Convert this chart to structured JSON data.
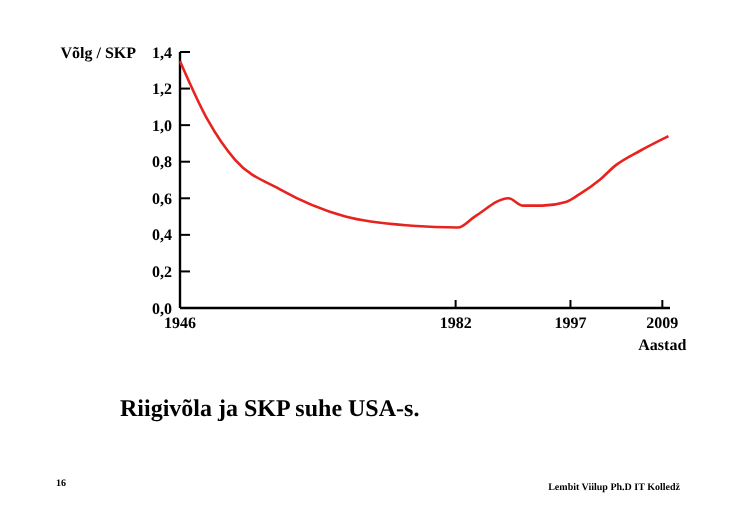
{
  "chart_data": {
    "type": "line",
    "title": "Riigivõla ja SKP suhe USA-s.",
    "ylabel": "Võlg / SKP",
    "xlabel": "Aastad",
    "annotations": [
      "16",
      "Lembit Viilup Ph.D IT Kolledž"
    ],
    "x": [
      1946,
      1949.6,
      1953.2,
      1959,
      1967.6,
      1976.3,
      1982.3,
      1984.5,
      1988.9,
      1990.8,
      1993.3,
      1996.4,
      1998.1,
      2000.8,
      2002.9,
      2006.1,
      2009.8
    ],
    "series": [
      {
        "color": "#e8231f",
        "values": [
          1.35,
          1.03,
          0.81,
          0.65,
          0.5,
          0.45,
          0.44,
          0.5,
          0.6,
          0.56,
          0.56,
          0.58,
          0.62,
          0.7,
          0.78,
          0.86,
          0.94
        ]
      }
    ],
    "xlim": [
      1946,
      2010
    ],
    "xticks": [
      1946,
      1982,
      1997,
      2009
    ],
    "ylim": [
      0,
      1.4
    ],
    "yticks": [
      {
        "value": 0,
        "label": "0,0"
      },
      {
        "value": 0.2,
        "label": "0,2"
      },
      {
        "value": 0.4,
        "label": "0,4"
      },
      {
        "value": 0.6,
        "label": "0,6"
      },
      {
        "value": 0.8,
        "label": "0,8"
      },
      {
        "value": 1,
        "label": "1,0"
      },
      {
        "value": 1.2,
        "label": "1,2"
      },
      {
        "value": 1.4,
        "label": "1,4"
      }
    ],
    "marker": "none",
    "line_style": "solid"
  }
}
